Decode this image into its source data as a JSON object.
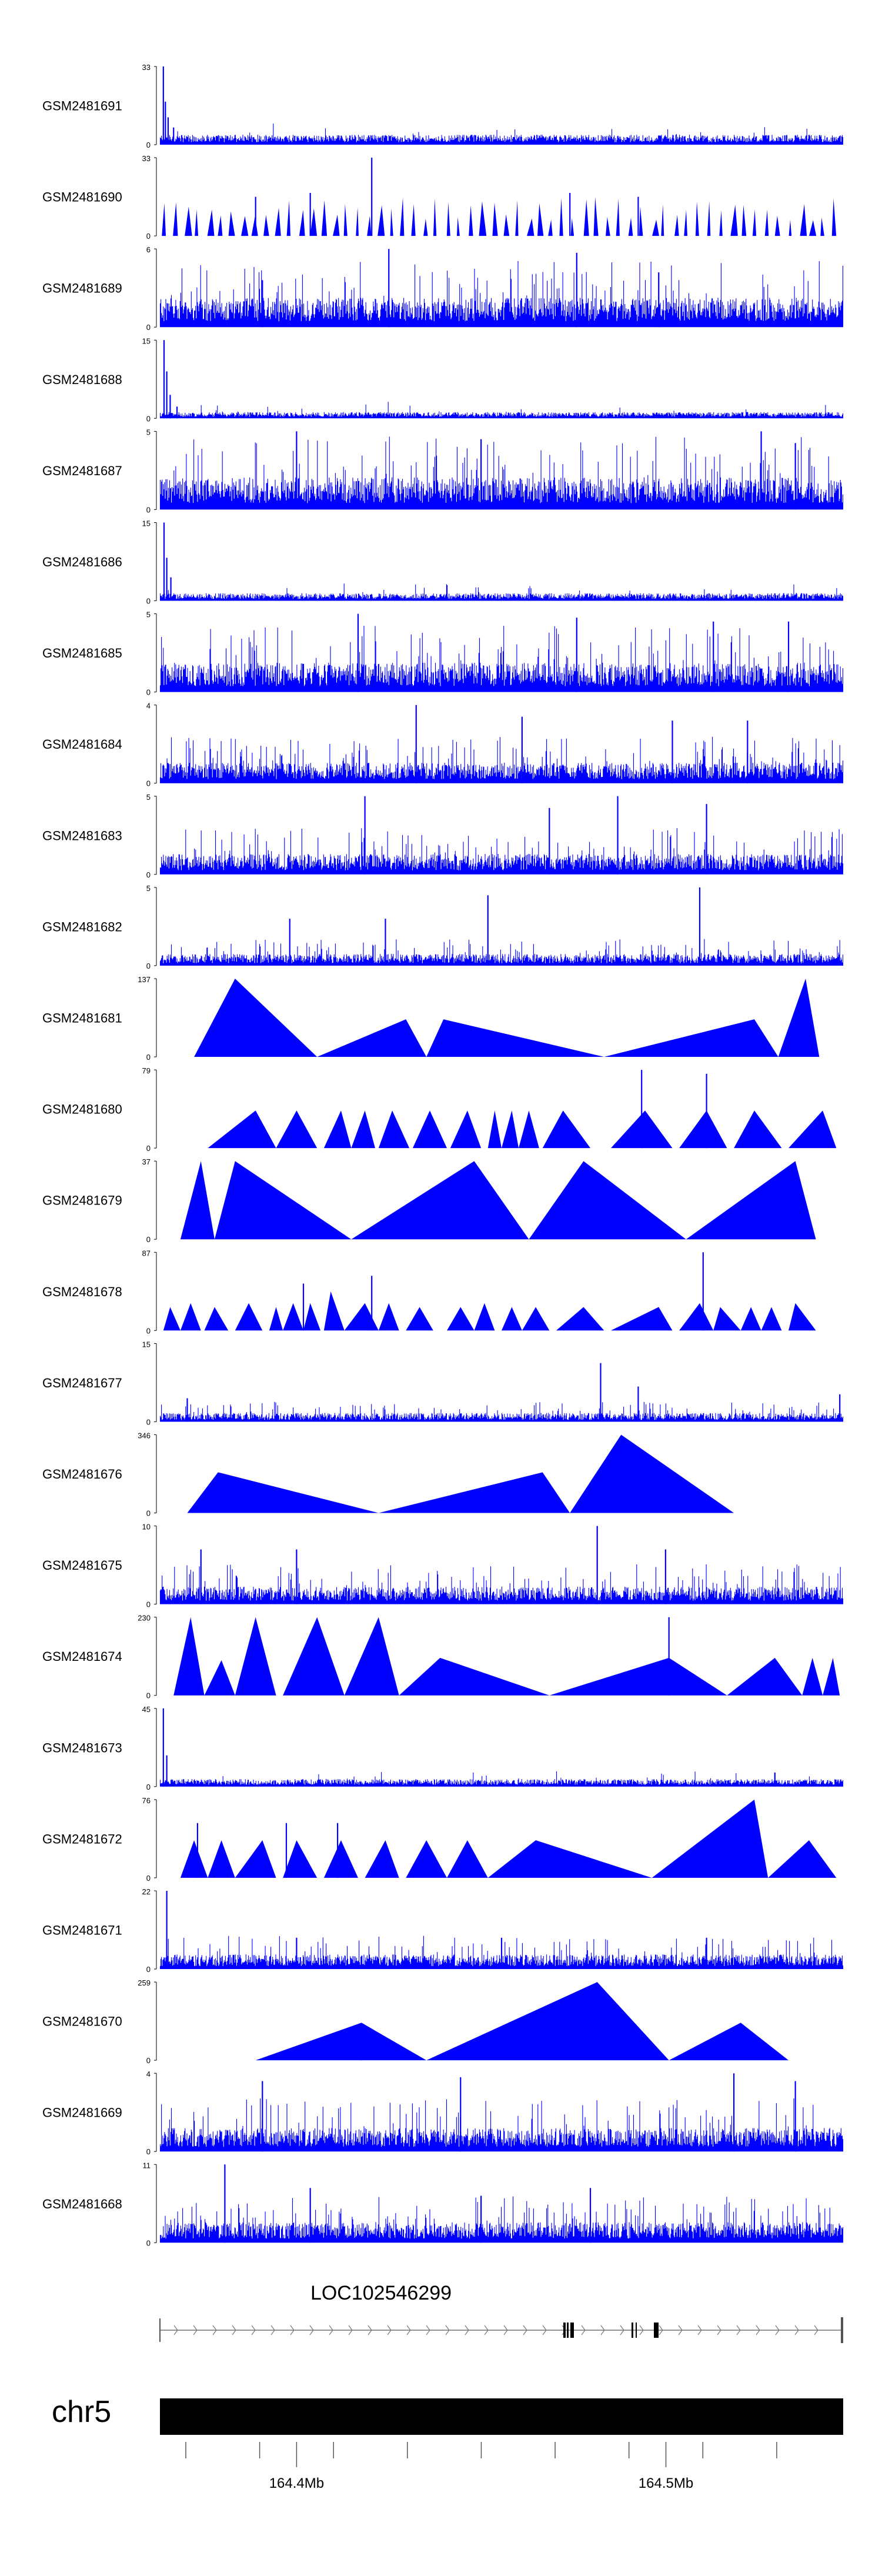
{
  "chart_data": {
    "type": "genome-coverage",
    "title": "",
    "color": "#0000ff",
    "chromosome": "chr5",
    "gene": "LOC102546299",
    "xlim_mb": [
      164.363,
      164.548
    ],
    "x_ticks": [
      {
        "value": 164.4,
        "label": "164.4Mb"
      },
      {
        "value": 164.5,
        "label": "164.5Mb"
      }
    ],
    "tracks": [
      {
        "name": "GSM2481691",
        "ymax": 33,
        "ylabel_top": "33",
        "ylabel_bottom": "0",
        "pattern": "dense",
        "base": 0.08,
        "spikes": [
          [
            0.005,
            1.0
          ],
          [
            0.008,
            0.55
          ],
          [
            0.012,
            0.35
          ],
          [
            0.02,
            0.22
          ],
          [
            0.04,
            0.1
          ]
        ]
      },
      {
        "name": "GSM2481690",
        "ymax": 33,
        "ylabel_top": "33",
        "ylabel_bottom": "0",
        "pattern": "sparse",
        "count": 60,
        "spikes": [
          [
            0.31,
            1.0
          ],
          [
            0.22,
            0.55
          ],
          [
            0.14,
            0.5
          ],
          [
            0.6,
            0.55
          ],
          [
            0.7,
            0.5
          ]
        ]
      },
      {
        "name": "GSM2481689",
        "ymax": 6,
        "ylabel_top": "6",
        "ylabel_bottom": "0",
        "pattern": "noise",
        "level": 0.5,
        "spikes": [
          [
            0.335,
            1.0
          ],
          [
            0.61,
            0.95
          ],
          [
            0.15,
            0.6
          ],
          [
            0.73,
            0.7
          ]
        ]
      },
      {
        "name": "GSM2481688",
        "ymax": 15,
        "ylabel_top": "15",
        "ylabel_bottom": "0",
        "pattern": "dense",
        "base": 0.05,
        "spikes": [
          [
            0.006,
            1.0
          ],
          [
            0.01,
            0.6
          ],
          [
            0.015,
            0.3
          ],
          [
            0.025,
            0.15
          ]
        ]
      },
      {
        "name": "GSM2481687",
        "ymax": 5,
        "ylabel_top": "5",
        "ylabel_bottom": "0",
        "pattern": "noise",
        "level": 0.55,
        "spikes": [
          [
            0.2,
            1.0
          ],
          [
            0.47,
            0.9
          ],
          [
            0.88,
            1.0
          ],
          [
            0.93,
            0.85
          ]
        ]
      },
      {
        "name": "GSM2481686",
        "ymax": 15,
        "ylabel_top": "15",
        "ylabel_bottom": "0",
        "pattern": "dense",
        "base": 0.06,
        "spikes": [
          [
            0.006,
            1.0
          ],
          [
            0.01,
            0.55
          ],
          [
            0.016,
            0.3
          ],
          [
            0.42,
            0.2
          ]
        ]
      },
      {
        "name": "GSM2481685",
        "ymax": 5,
        "ylabel_top": "5",
        "ylabel_bottom": "0",
        "pattern": "noise",
        "level": 0.5,
        "spikes": [
          [
            0.29,
            1.0
          ],
          [
            0.61,
            0.95
          ],
          [
            0.81,
            0.9
          ],
          [
            0.92,
            0.9
          ]
        ]
      },
      {
        "name": "GSM2481684",
        "ymax": 4,
        "ylabel_top": "4",
        "ylabel_bottom": "0",
        "pattern": "noise",
        "level": 0.35,
        "spikes": [
          [
            0.375,
            1.0
          ],
          [
            0.53,
            0.85
          ],
          [
            0.75,
            0.8
          ],
          [
            0.86,
            0.8
          ]
        ]
      },
      {
        "name": "GSM2481683",
        "ymax": 5,
        "ylabel_top": "5",
        "ylabel_bottom": "0",
        "pattern": "noise",
        "level": 0.35,
        "spikes": [
          [
            0.3,
            1.0
          ],
          [
            0.67,
            1.0
          ],
          [
            0.8,
            0.9
          ],
          [
            0.57,
            0.85
          ]
        ]
      },
      {
        "name": "GSM2481682",
        "ymax": 5,
        "ylabel_top": "5",
        "ylabel_bottom": "0",
        "pattern": "noise",
        "level": 0.2,
        "spikes": [
          [
            0.79,
            1.0
          ],
          [
            0.48,
            0.9
          ],
          [
            0.19,
            0.6
          ],
          [
            0.33,
            0.6
          ]
        ]
      },
      {
        "name": "GSM2481681",
        "ymax": 137,
        "ylabel_top": "137",
        "ylabel_bottom": "0",
        "pattern": "tri",
        "peaks": [
          [
            0.05,
            0.23,
            0.11,
            1.0
          ],
          [
            0.23,
            0.39,
            0.36,
            0.48
          ],
          [
            0.39,
            0.65,
            0.415,
            0.48
          ],
          [
            0.65,
            0.905,
            0.87,
            0.48
          ],
          [
            0.905,
            0.965,
            0.945,
            1.0
          ]
        ]
      },
      {
        "name": "GSM2481680",
        "ymax": 79,
        "ylabel_top": "79",
        "ylabel_bottom": "0",
        "pattern": "tri",
        "peaks": [
          [
            0.07,
            0.17,
            0.14,
            0.48
          ],
          [
            0.17,
            0.23,
            0.2,
            0.48
          ],
          [
            0.24,
            0.28,
            0.265,
            0.48
          ],
          [
            0.28,
            0.315,
            0.3,
            0.48
          ],
          [
            0.32,
            0.365,
            0.34,
            0.48
          ],
          [
            0.37,
            0.42,
            0.395,
            0.48
          ],
          [
            0.425,
            0.47,
            0.45,
            0.48
          ],
          [
            0.48,
            0.5,
            0.49,
            0.48
          ],
          [
            0.5,
            0.525,
            0.515,
            0.48
          ],
          [
            0.525,
            0.555,
            0.54,
            0.48
          ],
          [
            0.56,
            0.63,
            0.59,
            0.48
          ],
          [
            0.66,
            0.75,
            0.71,
            0.48
          ],
          [
            0.76,
            0.83,
            0.8,
            0.48
          ],
          [
            0.84,
            0.91,
            0.87,
            0.48
          ],
          [
            0.92,
            0.99,
            0.97,
            0.48
          ]
        ],
        "spikes": [
          [
            0.705,
            1.0
          ],
          [
            0.8,
            0.95
          ]
        ]
      },
      {
        "name": "GSM2481679",
        "ymax": 37,
        "ylabel_top": "37",
        "ylabel_bottom": "0",
        "pattern": "tri",
        "peaks": [
          [
            0.03,
            0.08,
            0.06,
            1.0
          ],
          [
            0.08,
            0.28,
            0.11,
            1.0
          ],
          [
            0.28,
            0.54,
            0.46,
            1.0
          ],
          [
            0.54,
            0.77,
            0.62,
            1.0
          ],
          [
            0.77,
            0.96,
            0.93,
            1.0
          ]
        ]
      },
      {
        "name": "GSM2481678",
        "ymax": 87,
        "ylabel_top": "87",
        "ylabel_bottom": "0",
        "pattern": "tri",
        "peaks": [
          [
            0.005,
            0.03,
            0.015,
            0.3
          ],
          [
            0.03,
            0.06,
            0.045,
            0.35
          ],
          [
            0.065,
            0.1,
            0.08,
            0.3
          ],
          [
            0.11,
            0.15,
            0.13,
            0.35
          ],
          [
            0.16,
            0.18,
            0.17,
            0.3
          ],
          [
            0.18,
            0.21,
            0.195,
            0.35
          ],
          [
            0.21,
            0.235,
            0.22,
            0.35
          ],
          [
            0.24,
            0.27,
            0.25,
            0.5
          ],
          [
            0.27,
            0.32,
            0.3,
            0.35
          ],
          [
            0.32,
            0.35,
            0.335,
            0.35
          ],
          [
            0.36,
            0.4,
            0.38,
            0.3
          ],
          [
            0.42,
            0.46,
            0.44,
            0.3
          ],
          [
            0.46,
            0.49,
            0.475,
            0.35
          ],
          [
            0.5,
            0.53,
            0.515,
            0.3
          ],
          [
            0.53,
            0.57,
            0.55,
            0.3
          ],
          [
            0.58,
            0.65,
            0.62,
            0.3
          ],
          [
            0.66,
            0.75,
            0.73,
            0.3
          ],
          [
            0.76,
            0.81,
            0.79,
            0.35
          ],
          [
            0.81,
            0.85,
            0.82,
            0.3
          ],
          [
            0.85,
            0.88,
            0.865,
            0.3
          ],
          [
            0.88,
            0.91,
            0.895,
            0.3
          ],
          [
            0.92,
            0.96,
            0.93,
            0.35
          ]
        ],
        "spikes": [
          [
            0.795,
            1.0
          ],
          [
            0.31,
            0.7
          ],
          [
            0.21,
            0.6
          ]
        ]
      },
      {
        "name": "GSM2481677",
        "ymax": 15,
        "ylabel_top": "15",
        "ylabel_bottom": "0",
        "pattern": "noise",
        "level": 0.15,
        "spikes": [
          [
            0.645,
            0.75
          ],
          [
            0.995,
            0.35
          ],
          [
            0.04,
            0.3
          ],
          [
            0.7,
            0.45
          ]
        ]
      },
      {
        "name": "GSM2481676",
        "ymax": 346,
        "ylabel_top": "346",
        "ylabel_bottom": "0",
        "pattern": "tri",
        "peaks": [
          [
            0.04,
            0.32,
            0.085,
            0.52
          ],
          [
            0.32,
            0.6,
            0.56,
            0.52
          ],
          [
            0.6,
            0.84,
            0.675,
            1.0
          ]
        ]
      },
      {
        "name": "GSM2481675",
        "ymax": 10,
        "ylabel_top": "10",
        "ylabel_bottom": "0",
        "pattern": "noise",
        "level": 0.3,
        "spikes": [
          [
            0.64,
            1.0
          ],
          [
            0.06,
            0.7
          ],
          [
            0.2,
            0.7
          ],
          [
            0.74,
            0.7
          ]
        ]
      },
      {
        "name": "GSM2481674",
        "ymax": 230,
        "ylabel_top": "230",
        "ylabel_bottom": "0",
        "pattern": "tri",
        "peaks": [
          [
            0.02,
            0.065,
            0.045,
            1.0
          ],
          [
            0.065,
            0.11,
            0.09,
            0.45
          ],
          [
            0.11,
            0.17,
            0.14,
            1.0
          ],
          [
            0.18,
            0.27,
            0.23,
            1.0
          ],
          [
            0.27,
            0.35,
            0.32,
            1.0
          ],
          [
            0.35,
            0.57,
            0.41,
            0.48
          ],
          [
            0.57,
            0.83,
            0.745,
            0.48
          ],
          [
            0.83,
            0.94,
            0.9,
            0.48
          ],
          [
            0.94,
            0.97,
            0.955,
            0.48
          ],
          [
            0.97,
            0.995,
            0.985,
            0.48
          ]
        ],
        "spikes": [
          [
            0.745,
            1.0
          ]
        ]
      },
      {
        "name": "GSM2481673",
        "ymax": 45,
        "ylabel_top": "45",
        "ylabel_bottom": "0",
        "pattern": "dense",
        "base": 0.06,
        "spikes": [
          [
            0.005,
            1.0
          ],
          [
            0.01,
            0.4
          ],
          [
            0.9,
            0.18
          ]
        ]
      },
      {
        "name": "GSM2481672",
        "ymax": 76,
        "ylabel_top": "76",
        "ylabel_bottom": "0",
        "pattern": "tri",
        "peaks": [
          [
            0.03,
            0.07,
            0.05,
            0.48
          ],
          [
            0.07,
            0.11,
            0.09,
            0.48
          ],
          [
            0.11,
            0.17,
            0.15,
            0.48
          ],
          [
            0.18,
            0.23,
            0.2,
            0.48
          ],
          [
            0.24,
            0.29,
            0.265,
            0.48
          ],
          [
            0.3,
            0.35,
            0.33,
            0.48
          ],
          [
            0.36,
            0.42,
            0.39,
            0.48
          ],
          [
            0.42,
            0.48,
            0.45,
            0.48
          ],
          [
            0.48,
            0.72,
            0.55,
            0.48
          ],
          [
            0.72,
            0.89,
            0.87,
            1.0
          ],
          [
            0.89,
            0.99,
            0.95,
            0.48
          ]
        ],
        "spikes": [
          [
            0.055,
            0.7
          ],
          [
            0.185,
            0.7
          ],
          [
            0.26,
            0.7
          ]
        ]
      },
      {
        "name": "GSM2481671",
        "ymax": 22,
        "ylabel_top": "22",
        "ylabel_bottom": "0",
        "pattern": "noise",
        "level": 0.25,
        "spikes": [
          [
            0.01,
            1.0
          ],
          [
            0.2,
            0.4
          ],
          [
            0.5,
            0.4
          ],
          [
            0.8,
            0.4
          ]
        ]
      },
      {
        "name": "GSM2481670",
        "ymax": 259,
        "ylabel_top": "259",
        "ylabel_bottom": "0",
        "pattern": "tri",
        "peaks": [
          [
            0.14,
            0.39,
            0.295,
            0.48
          ],
          [
            0.39,
            0.745,
            0.64,
            1.0
          ],
          [
            0.745,
            0.92,
            0.85,
            0.48
          ]
        ],
        "spikes": [
          [
            0.295,
            0.45
          ]
        ]
      },
      {
        "name": "GSM2481669",
        "ymax": 4,
        "ylabel_top": "4",
        "ylabel_bottom": "0",
        "pattern": "noise",
        "level": 0.4,
        "spikes": [
          [
            0.15,
            0.9
          ],
          [
            0.44,
            0.95
          ],
          [
            0.84,
            1.0
          ],
          [
            0.93,
            0.9
          ]
        ]
      },
      {
        "name": "GSM2481668",
        "ymax": 11,
        "ylabel_top": "11",
        "ylabel_bottom": "0",
        "pattern": "noise",
        "level": 0.35,
        "spikes": [
          [
            0.095,
            1.0
          ],
          [
            0.22,
            0.7
          ],
          [
            0.63,
            0.7
          ],
          [
            0.47,
            0.6
          ]
        ]
      }
    ]
  }
}
